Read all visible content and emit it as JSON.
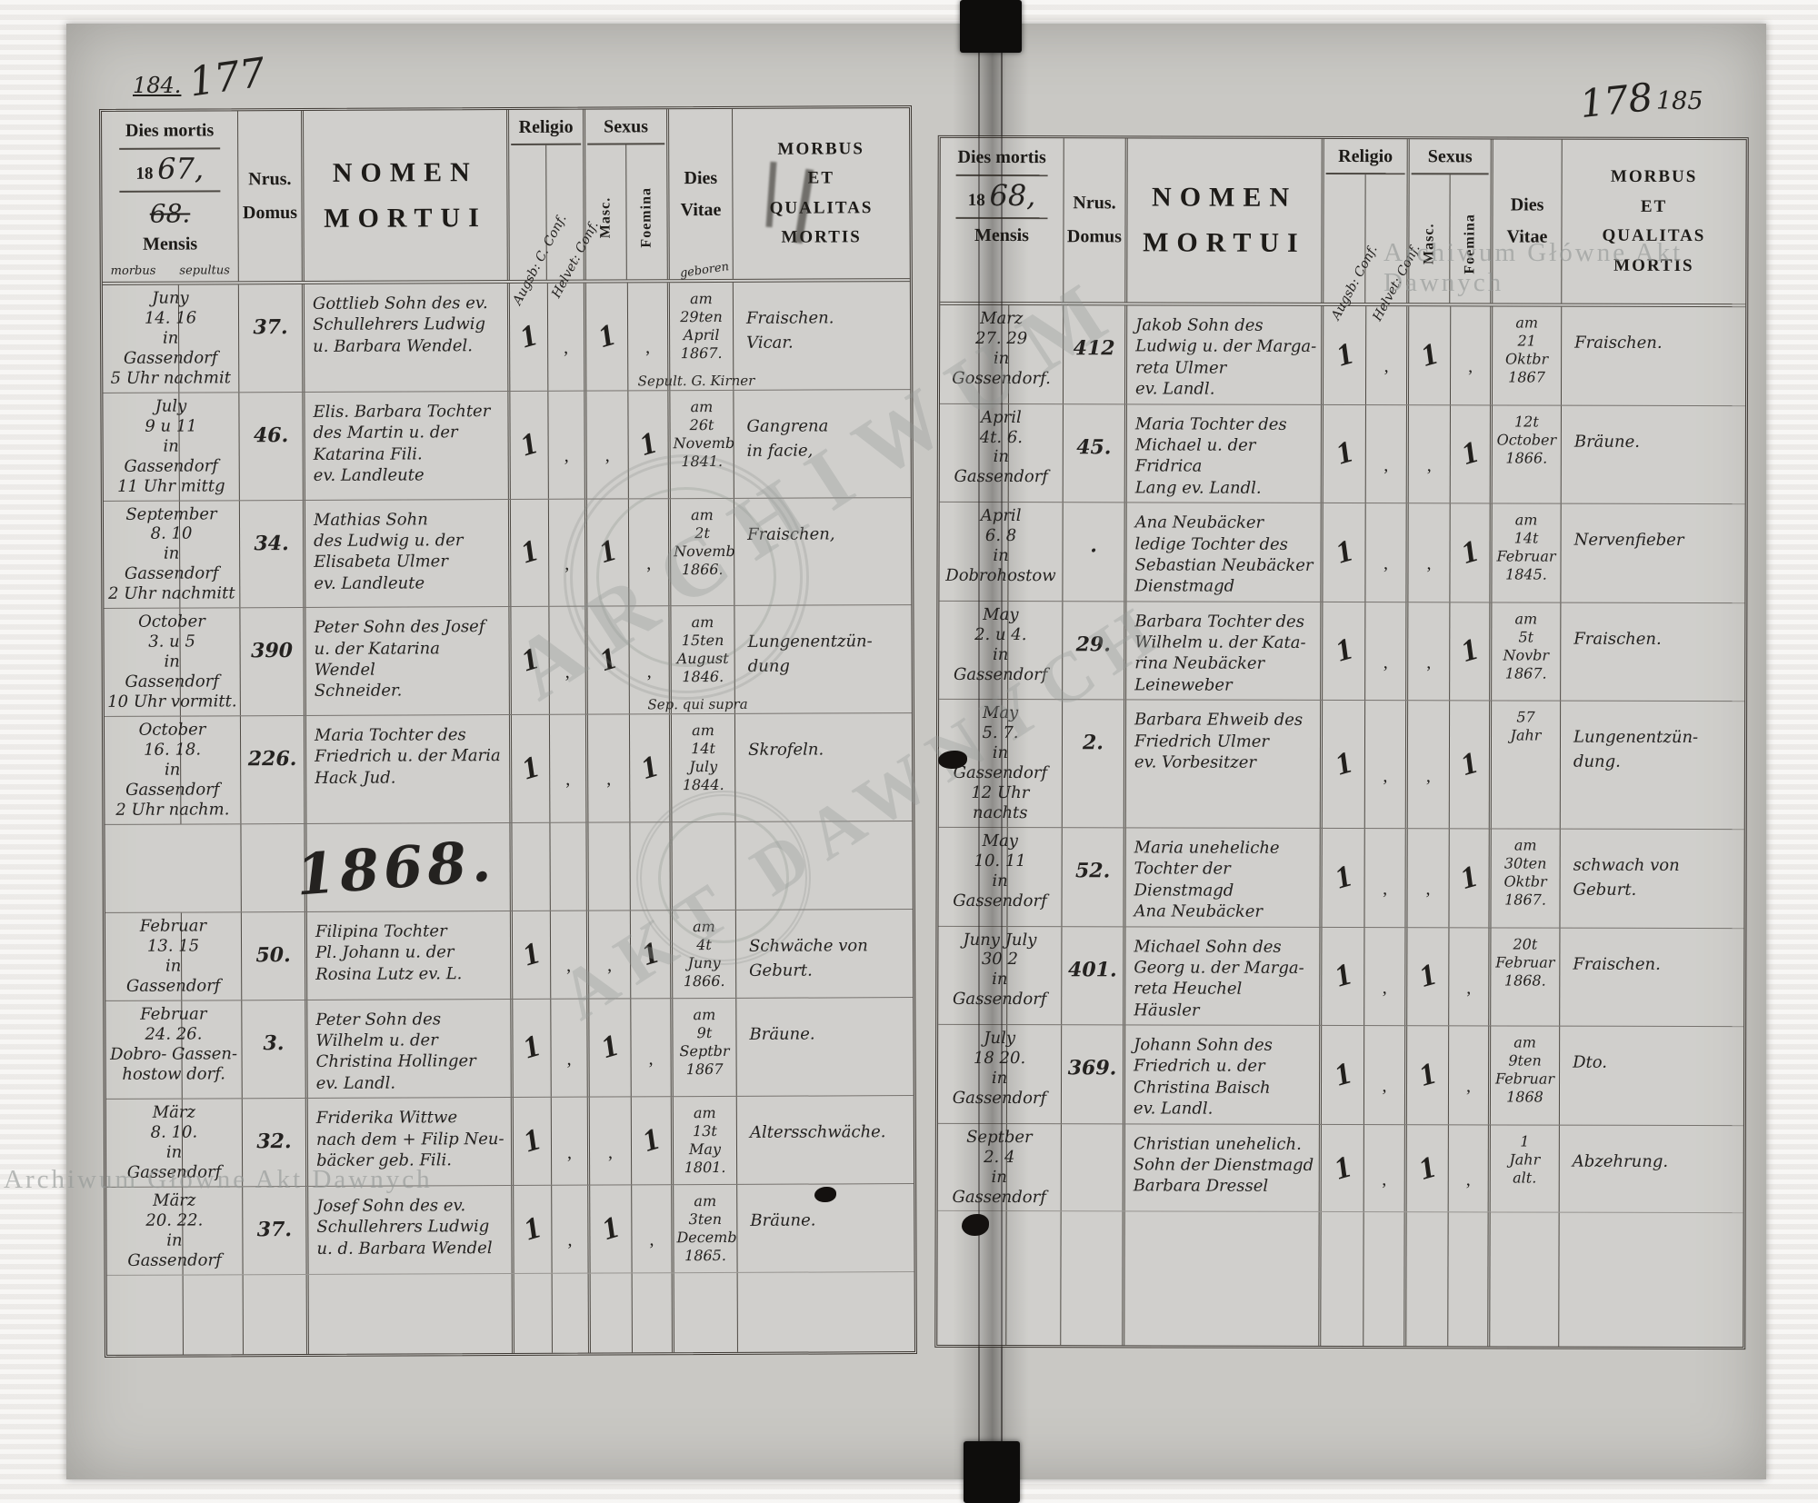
{
  "watermark": {
    "archive_name": "Archiwum Główne Akt Dawnych",
    "diag_line1": "ARCHIWUM",
    "diag_line2": "AKT DAWNYCH"
  },
  "left_page": {
    "page_numbers": {
      "stamped": "184.",
      "handwritten": "177"
    },
    "header": {
      "dies_mortis": "Dies mortis",
      "year_prefix": "18",
      "year_top": "67,",
      "year_bottom": "68.",
      "mensis": "Mensis",
      "sub_morbus": "morbus",
      "sub_sepultus": "sepultus",
      "nrus": "Nrus.",
      "domus": "Domus",
      "nomen_line1": "NOMEN",
      "nomen_line2": "MORTUI",
      "religio": "Religio",
      "religio_sub1": "Augsb: C. Conf.",
      "religio_sub2": "Helvet: Conf.",
      "sexus": "Sexus",
      "masc": "Masc.",
      "foemina": "Foemina",
      "dies_line1": "Dies",
      "dies_line2": "Vitae",
      "dies_note": "geboren",
      "morbus_line1": "MORBUS",
      "morbus_line2": "ET",
      "morbus_line3": "QUALITAS",
      "morbus_line4": "MORTIS"
    },
    "rows": [
      {
        "date": "Juny\n14.   16\nin\nGassendorf\n5 Uhr nachmit",
        "nrus": "37.",
        "name": "Gottlieb Sohn des ev.\nSchullehrers Ludwig\nu. Barbara Wendel.",
        "rel_a": "1",
        "rel_h": ",",
        "masc": "1",
        "foem": ",",
        "vitae": "am\n29ten\nApril\n1867.",
        "note": "Sepult. G. Kirner",
        "morbus": "Fraischen.\nVicar."
      },
      {
        "date": "July\n9 u 11\nin\nGassendorf\n11 Uhr mittg",
        "nrus": "46.",
        "name": "Elis. Barbara Tochter\ndes Martin u. der\nKatarina Fili.\nev. Landleute",
        "rel_a": "1",
        "rel_h": ",",
        "masc": ",",
        "foem": "1",
        "vitae": "am\n26t\nNovemb\n1841.",
        "morbus": "Gangrena\nin facie,"
      },
      {
        "date": "September\n8.   10\nin\nGassendorf\n2 Uhr nachmitt",
        "nrus": "34.",
        "name": "Mathias  Sohn\ndes Ludwig u. der\nElisabeta Ulmer\nev. Landleute",
        "rel_a": "1",
        "rel_h": ",",
        "masc": "1",
        "foem": ",",
        "vitae": "am\n2t\nNovemb\n1866.",
        "morbus": "Fraischen,"
      },
      {
        "date": "October\n3. u 5\nin\nGassendorf\n10 Uhr vormitt.",
        "nrus": "390",
        "name": "Peter Sohn des Josef\nu. der Katarina\nWendel\nSchneider.",
        "rel_a": "1",
        "rel_h": ",",
        "masc": "1",
        "foem": ",",
        "vitae": "am\n15ten\nAugust\n1846.",
        "note": "Sep. qui supra",
        "morbus": "Lungenentzün-\ndung"
      },
      {
        "date": "October\n16.   18.\nin\nGassendorf\n2 Uhr nachm.",
        "nrus": "226.",
        "name": "Maria Tochter des\nFriedrich u. der Maria\nHack Jud.",
        "rel_a": "1",
        "rel_h": ",",
        "masc": ",",
        "foem": "1",
        "vitae": "am\n14t\nJuly\n1844.",
        "morbus": "Skrofeln."
      },
      {
        "type": "year",
        "text": "1868."
      },
      {
        "date": "Februar\n13.   15\nin\nGassendorf",
        "nrus": "50.",
        "name": "Filipina Tochter\nPl. Johann u. der\nRosina Lutz ev. L.",
        "rel_a": "1",
        "rel_h": ",",
        "masc": ",",
        "foem": "1",
        "vitae": "am\n4t\nJuny\n1866.",
        "morbus": "Schwäche von\nGeburt."
      },
      {
        "date": "Februar\n24.   26.\nDobro-  Gassen-\nhostow  dorf.",
        "nrus": "3.",
        "name": "Peter Sohn des\nWilhelm u. der\nChristina Hollinger\nev. Landl.",
        "rel_a": "1",
        "rel_h": ",",
        "masc": "1",
        "foem": ",",
        "vitae": "am\n9t\nSeptbr\n1867",
        "morbus": "Bräune."
      },
      {
        "date": "März\n8.   10.\nin\nGassendorf",
        "nrus": "32.",
        "name": "Friderika Wittwe\nnach dem + Filip Neu-\nbäcker geb. Fili.",
        "rel_a": "1",
        "rel_h": ",",
        "masc": ",",
        "foem": "1",
        "vitae": "am\n13t\nMay\n1801.",
        "morbus": "Altersschwäche."
      },
      {
        "date": "März\n20.   22.\nin\nGassendorf",
        "nrus": "37.",
        "name": "Josef Sohn des ev.\nSchullehrers Ludwig\nu. d. Barbara Wendel",
        "rel_a": "1",
        "rel_h": ",",
        "masc": "1",
        "foem": ",",
        "vitae": "am\n3ten\nDecemb\n1865.",
        "morbus": "Bräune."
      }
    ]
  },
  "right_page": {
    "page_numbers": {
      "handwritten": "178",
      "stamped": "185"
    },
    "header": {
      "dies_mortis": "Dies mortis",
      "year_prefix": "18",
      "year_top": "68,",
      "mensis": "Mensis",
      "nrus": "Nrus.",
      "domus": "Domus",
      "nomen_line1": "NOMEN",
      "nomen_line2": "MORTUI",
      "religio": "Religio",
      "religio_sub1": "Augsb: Conf.",
      "religio_sub2": "Helvet: Conf.",
      "sexus": "Sexus",
      "masc": "Masc.",
      "foemina": "Foemina",
      "dies_line1": "Dies",
      "dies_line2": "Vitae",
      "morbus_line1": "MORBUS",
      "morbus_line2": "ET",
      "morbus_line3": "QUALITAS",
      "morbus_line4": "MORTIS"
    },
    "rows": [
      {
        "date": "Marz\n27.   29\nin\nGossendorf.",
        "nrus": "412",
        "name": "Jakob Sohn des\nLudwig u. der Marga-\nreta Ulmer\nev. Landl.",
        "rel_a": "1",
        "rel_h": ",",
        "masc": "1",
        "foem": ",",
        "vitae": "am\n21\nOktbr\n1867",
        "morbus": "Fraischen."
      },
      {
        "date": "April\n4t.   6.\nin\nGassendorf",
        "nrus": "45.",
        "name": "Maria Tochter des\nMichael u. der Fridrica\nLang ev. Landl.",
        "rel_a": "1",
        "rel_h": ",",
        "masc": ",",
        "foem": "1",
        "vitae": "12t\nOctober\n1866.",
        "morbus": "Bräune."
      },
      {
        "date": "April\n6.   8\nin\nDobrohostow",
        "nrus": ".",
        "name": "Ana Neubäcker\nledige Tochter des\nSebastian Neubäcker\nDienstmagd",
        "rel_a": "1",
        "rel_h": ",",
        "masc": ",",
        "foem": "1",
        "vitae": "am\n14t\nFebruar\n1845.",
        "morbus": "Nervenfieber"
      },
      {
        "date": "May\n2. u 4.\nin\nGassendorf",
        "nrus": "29.",
        "name": "Barbara Tochter des\nWilhelm u. der Kata-\nrina Neubäcker\nLeineweber",
        "rel_a": "1",
        "rel_h": ",",
        "masc": ",",
        "foem": "1",
        "vitae": "am\n5t\nNovbr\n1867.",
        "morbus": "Fraischen."
      },
      {
        "date": "May\n5.   7.\nin\nGassendorf\n12 Uhr nachts",
        "nrus": "2.",
        "name": "Barbara Ehweib des\nFriedrich Ulmer\nev. Vorbesitzer",
        "rel_a": "1",
        "rel_h": ",",
        "masc": ",",
        "foem": "1",
        "vitae": "57\nJahr",
        "morbus": "Lungenentzün-\ndung."
      },
      {
        "date": "May\n10.   11\nin\nGassendorf",
        "nrus": "52.",
        "name": "Maria uneheliche\nTochter der Dienstmagd\nAna Neubäcker",
        "rel_a": "1",
        "rel_h": ",",
        "masc": ",",
        "foem": "1",
        "vitae": "am\n30ten\nOktbr\n1867.",
        "morbus": "schwach von\nGeburt."
      },
      {
        "date": "Juny July\n30    2\nin\nGassendorf",
        "nrus": "401.",
        "name": "Michael Sohn des\nGeorg u. der Marga-\nreta Heuchel\nHäusler",
        "rel_a": "1",
        "rel_h": ",",
        "masc": "1",
        "foem": ",",
        "vitae": "20t\nFebruar\n1868.",
        "morbus": "Fraischen."
      },
      {
        "date": "July\n18   20.\nin\nGassendorf",
        "nrus": "369.",
        "name": "Johann Sohn des\nFriedrich u. der\nChristina Baisch\nev. Landl.",
        "rel_a": "1",
        "rel_h": ",",
        "masc": "1",
        "foem": ",",
        "vitae": "am\n9ten\nFebruar\n1868",
        "morbus": "Dto."
      },
      {
        "date": "Septber\n2.    4\nin\nGassendorf",
        "nrus": "",
        "name": "Christian unehelich.\nSohn der Dienstmagd\nBarbara Dressel",
        "rel_a": "1",
        "rel_h": ",",
        "masc": "1",
        "foem": ",",
        "vitae": "1\nJahr\nalt.",
        "morbus": "Abzehrung."
      }
    ]
  }
}
